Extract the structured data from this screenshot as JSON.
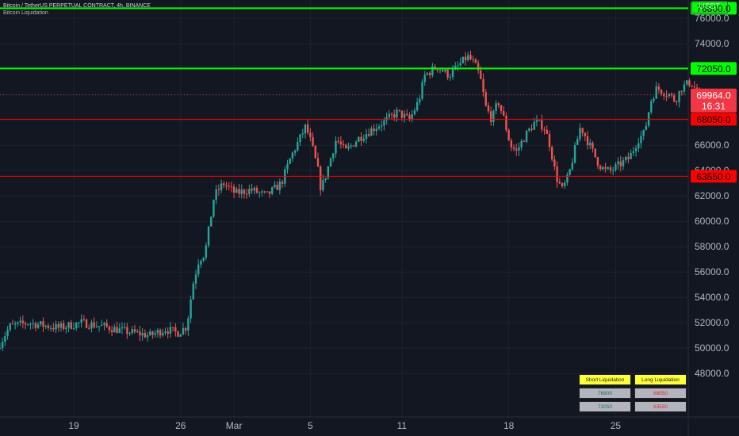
{
  "header": {
    "title": "Bitcoin / TetherUS PERPETUAL CONTRACT, 4h, BINANCE",
    "indicator": "Bitcoin Liquidation"
  },
  "currency": "USDT",
  "countdown": "16:31",
  "table": {
    "short_header": "Short Liquidation",
    "long_header": "Long Liquidation",
    "rows": [
      {
        "short": "76800",
        "long": "68050"
      },
      {
        "short": "72050",
        "long": "63550"
      }
    ]
  },
  "colors": {
    "background": "#131722",
    "up": "#26a69a",
    "down": "#ef5350",
    "short_line": "#00ff00",
    "long_line": "#ff0000",
    "table_header": "#ffff3b"
  },
  "chart_data": {
    "type": "candlestick",
    "title": "Bitcoin / TetherUS PERPETUAL CONTRACT, 4h, BINANCE",
    "ylim": [
      47000,
      78500
    ],
    "y_ticks": [
      48000,
      50000,
      52000,
      54000,
      56000,
      58000,
      60000,
      62000,
      64000,
      66000,
      68000,
      70000,
      72000,
      74000,
      76000,
      78000
    ],
    "x_ticks": [
      {
        "label": "19",
        "day": 19
      },
      {
        "label": "26",
        "day": 26
      },
      {
        "label": "Mar",
        "day": 29.5
      },
      {
        "label": "5",
        "day": 34.5
      },
      {
        "label": "11",
        "day": 40.5
      },
      {
        "label": "18",
        "day": 47.5
      },
      {
        "label": "25",
        "day": 54.5
      }
    ],
    "x_range_days": [
      14,
      60
    ],
    "last_price": 69964.0,
    "levels": [
      {
        "value": 76800.0,
        "label": "76800.0",
        "kind": "short"
      },
      {
        "value": 72050.0,
        "label": "72050.0",
        "kind": "short"
      },
      {
        "value": 68050.0,
        "label": "68050.0",
        "kind": "long"
      },
      {
        "value": 63550.0,
        "label": "63550.0",
        "kind": "long"
      }
    ],
    "close_path": [
      [
        14.0,
        50000
      ],
      [
        14.8,
        51700
      ],
      [
        16.0,
        52000
      ],
      [
        18.0,
        51600
      ],
      [
        19.5,
        52000
      ],
      [
        21.0,
        51700
      ],
      [
        22.5,
        51300
      ],
      [
        24.0,
        51000
      ],
      [
        25.0,
        51500
      ],
      [
        25.8,
        51200
      ],
      [
        26.4,
        51700
      ],
      [
        26.8,
        55000
      ],
      [
        27.2,
        57000
      ],
      [
        27.6,
        57500
      ],
      [
        28.2,
        62000
      ],
      [
        28.8,
        63000
      ],
      [
        29.6,
        62200
      ],
      [
        30.6,
        62500
      ],
      [
        31.6,
        62000
      ],
      [
        32.6,
        63000
      ],
      [
        33.2,
        65000
      ],
      [
        33.8,
        66500
      ],
      [
        34.2,
        67500
      ],
      [
        34.6,
        66000
      ],
      [
        35.0,
        64000
      ],
      [
        35.2,
        62500
      ],
      [
        35.6,
        64000
      ],
      [
        36.2,
        66500
      ],
      [
        36.8,
        65500
      ],
      [
        37.6,
        66500
      ],
      [
        38.6,
        67300
      ],
      [
        39.4,
        67900
      ],
      [
        40.2,
        68600
      ],
      [
        41.0,
        68000
      ],
      [
        41.6,
        69500
      ],
      [
        42.0,
        71500
      ],
      [
        42.8,
        72200
      ],
      [
        43.6,
        71500
      ],
      [
        44.4,
        72500
      ],
      [
        44.8,
        73000
      ],
      [
        45.2,
        72500
      ],
      [
        45.6,
        71500
      ],
      [
        46.0,
        69000
      ],
      [
        46.4,
        68000
      ],
      [
        46.8,
        69500
      ],
      [
        47.2,
        68000
      ],
      [
        47.6,
        66000
      ],
      [
        48.0,
        65500
      ],
      [
        48.6,
        66800
      ],
      [
        49.2,
        67800
      ],
      [
        49.8,
        67500
      ],
      [
        50.2,
        66000
      ],
      [
        50.6,
        63500
      ],
      [
        51.0,
        62500
      ],
      [
        51.4,
        63500
      ],
      [
        51.8,
        65500
      ],
      [
        52.2,
        67500
      ],
      [
        52.6,
        66500
      ],
      [
        53.0,
        65500
      ],
      [
        53.4,
        64500
      ],
      [
        53.8,
        64000
      ],
      [
        54.2,
        64000
      ],
      [
        54.8,
        64500
      ],
      [
        55.4,
        65000
      ],
      [
        56.0,
        66500
      ],
      [
        56.4,
        67000
      ],
      [
        56.8,
        69500
      ],
      [
        57.2,
        70500
      ],
      [
        58.0,
        70000
      ],
      [
        58.4,
        69500
      ],
      [
        58.8,
        70500
      ],
      [
        59.4,
        71000
      ],
      [
        60.0,
        69964
      ]
    ]
  }
}
